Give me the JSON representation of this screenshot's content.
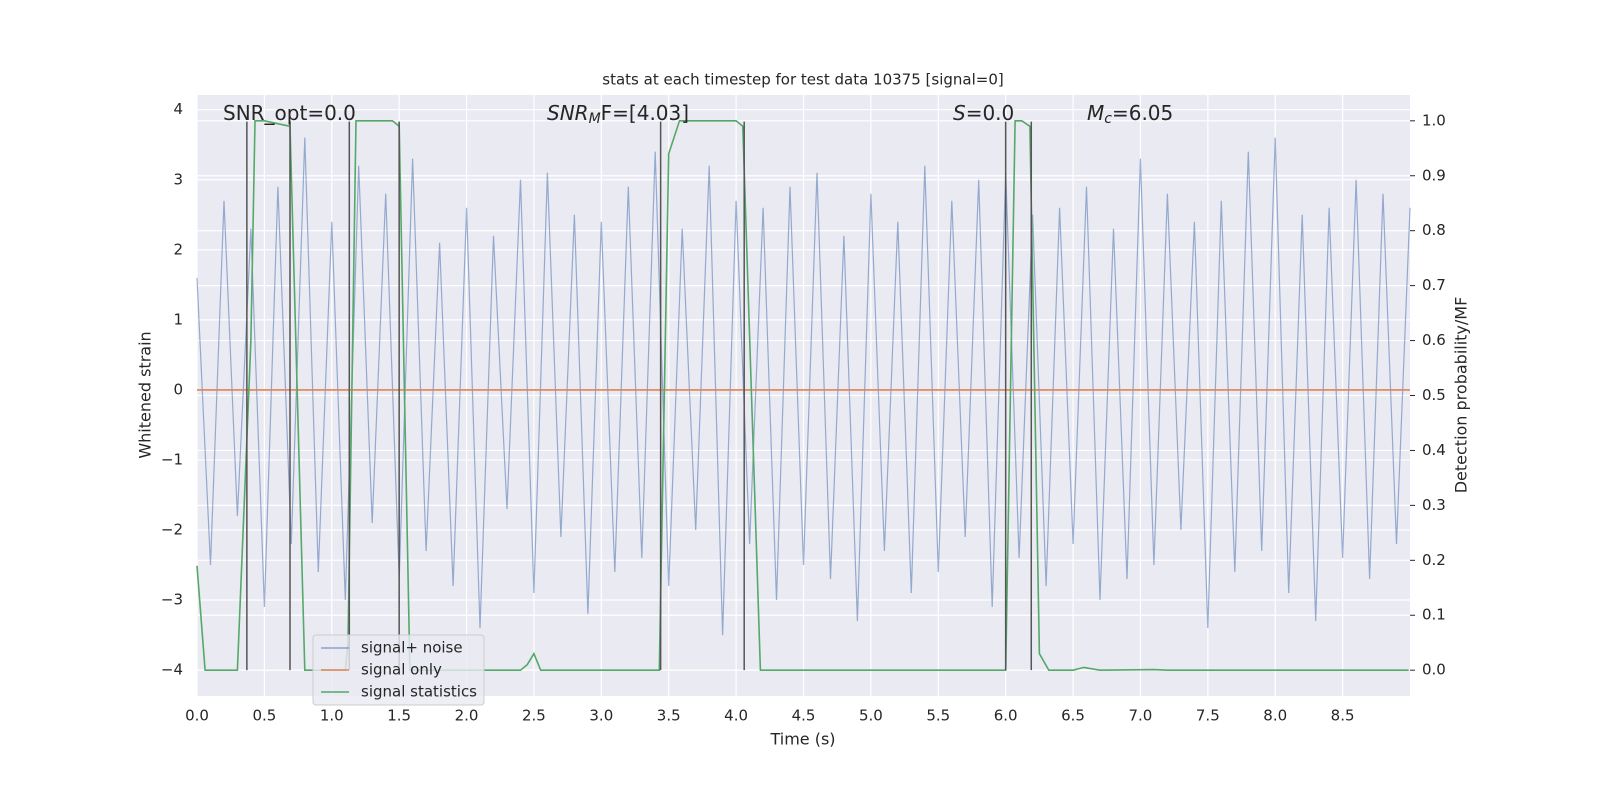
{
  "chart_data": {
    "type": "line",
    "title": "stats at each timestep for test data 10375 [signal=0]",
    "xlabel": "Time (s)",
    "ylabel": "Whitened strain",
    "y2label": "Detection probability/MF",
    "annotations": [
      {
        "main": "SNR_opt=0.0"
      },
      {
        "main": "SNR",
        "sub": "M",
        "rest": "F=[4.03]"
      },
      {
        "main": "S",
        "rest": "=0.0"
      },
      {
        "main": "M",
        "sub": "c",
        "rest": "=6.05"
      }
    ],
    "xlim": [
      0,
      9.0
    ],
    "ylim": [
      -4.37,
      4.21
    ],
    "y2lim": [
      -0.047,
      1.047
    ],
    "xticks": [
      {
        "value": 0,
        "label": "0.0"
      },
      0.5,
      {
        "value": 1,
        "label": "1.0"
      },
      1.5,
      {
        "value": 2,
        "label": "2.0"
      },
      2.5,
      {
        "value": 3,
        "label": "3.0"
      },
      3.5,
      {
        "value": 4,
        "label": "4.0"
      },
      4.5,
      {
        "value": 5,
        "label": "5.0"
      },
      5.5,
      {
        "value": 6,
        "label": "6.0"
      },
      6.5,
      {
        "value": 7,
        "label": "7.0"
      },
      7.5,
      {
        "value": 8,
        "label": "8.0"
      },
      8.5
    ],
    "yticks": [
      {
        "value": -4,
        "label": "−4"
      },
      {
        "value": -3,
        "label": "−3"
      },
      {
        "value": -2,
        "label": "−2"
      },
      {
        "value": -1,
        "label": "−1"
      },
      0,
      1,
      2,
      3,
      4
    ],
    "y2ticks": [
      {
        "value": 0,
        "label": "0.0"
      },
      0.1,
      0.2,
      0.3,
      0.4,
      0.5,
      0.6,
      0.7,
      0.8,
      0.9,
      {
        "value": 1,
        "label": "1.0"
      }
    ],
    "grid": true,
    "legend": "lower left",
    "vlines": [
      0.37,
      0.69,
      1.13,
      1.5,
      3.44,
      4.06,
      6.0,
      6.19
    ],
    "vline_span": [
      -4,
      3.83
    ],
    "vline_color": "#555555",
    "series": [
      {
        "name": "signal+ noise",
        "color": "#4c72b0",
        "x": [
          0.0,
          0.1,
          0.2,
          0.3,
          0.4,
          0.5,
          0.6,
          0.7,
          0.8,
          0.9,
          1.0,
          1.1,
          1.2,
          1.3,
          1.4,
          1.5,
          1.6,
          1.7,
          1.8,
          1.9,
          2.0,
          2.1,
          2.2,
          2.3,
          2.4,
          2.5,
          2.6,
          2.7,
          2.8,
          2.9,
          3.0,
          3.1,
          3.2,
          3.3,
          3.4,
          3.5,
          3.6,
          3.7,
          3.8,
          3.9,
          4.0,
          4.1,
          4.2,
          4.3,
          4.4,
          4.5,
          4.6,
          4.7,
          4.8,
          4.9,
          5.0,
          5.1,
          5.2,
          5.3,
          5.4,
          5.5,
          5.6,
          5.7,
          5.8,
          5.9,
          6.0,
          6.1,
          6.2,
          6.3,
          6.4,
          6.5,
          6.6,
          6.7,
          6.8,
          6.9,
          7.0,
          7.1,
          7.2,
          7.3,
          7.4,
          7.5,
          7.6,
          7.7,
          7.8,
          7.9,
          8.0,
          8.1,
          8.2,
          8.3,
          8.4,
          8.5,
          8.6,
          8.7,
          8.8,
          8.9,
          9.0
        ],
        "values": [
          1.6,
          -2.5,
          2.7,
          -1.8,
          2.3,
          -3.1,
          2.9,
          -2.2,
          3.6,
          -2.6,
          2.4,
          -3.0,
          3.2,
          -1.9,
          2.8,
          -2.7,
          3.3,
          -2.3,
          2.1,
          -2.8,
          2.6,
          -3.4,
          2.2,
          -1.7,
          3.0,
          -2.9,
          3.1,
          -2.1,
          2.5,
          -3.2,
          2.4,
          -2.6,
          2.9,
          -2.4,
          3.4,
          -2.8,
          2.3,
          -2.0,
          3.2,
          -3.5,
          2.7,
          -2.2,
          2.6,
          -3.0,
          2.9,
          -2.5,
          3.1,
          -2.7,
          2.2,
          -3.3,
          2.8,
          -2.3,
          2.4,
          -2.9,
          3.2,
          -2.6,
          2.7,
          -2.1,
          3.0,
          -3.1,
          3.1,
          -2.4,
          2.5,
          -2.8,
          2.6,
          -2.2,
          2.9,
          -3.0,
          2.3,
          -2.7,
          3.3,
          -2.5,
          2.8,
          -2.0,
          2.4,
          -3.4,
          2.7,
          -2.6,
          3.4,
          -2.3,
          3.6,
          -2.9,
          2.5,
          -3.3,
          2.6,
          -2.4,
          3.0,
          -2.7,
          2.8,
          -2.2,
          2.6
        ]
      },
      {
        "name": "signal only",
        "color": "#dd8452",
        "x": [
          0.0,
          9.0
        ],
        "values": [
          0,
          0
        ]
      },
      {
        "name": "signal statistics",
        "color": "#55a868",
        "axis": "y2",
        "x": [
          0.0,
          0.06,
          0.1,
          0.3,
          0.4,
          0.43,
          0.5,
          0.69,
          0.8,
          1.1,
          1.12,
          1.18,
          1.45,
          1.5,
          1.58,
          2.4,
          2.45,
          2.5,
          2.55,
          3.43,
          3.5,
          3.58,
          4.0,
          4.05,
          4.18,
          4.25,
          6.0,
          6.07,
          6.12,
          6.18,
          6.25,
          6.32,
          6.5,
          6.58,
          6.7,
          7.1,
          7.2,
          8.99
        ],
        "values": [
          0.19,
          0.0,
          0.0,
          0.0,
          0.6,
          1.0,
          1.0,
          0.99,
          0.0,
          0.0,
          0.05,
          1.0,
          1.0,
          0.99,
          0.0,
          0.0,
          0.01,
          0.03,
          0.0,
          0.0,
          0.94,
          1.0,
          1.0,
          0.99,
          0.0,
          0.0,
          0.0,
          1.0,
          1.0,
          0.99,
          0.03,
          0.0,
          0.0,
          0.005,
          0.0,
          0.001,
          0.0,
          0.0
        ]
      }
    ]
  }
}
